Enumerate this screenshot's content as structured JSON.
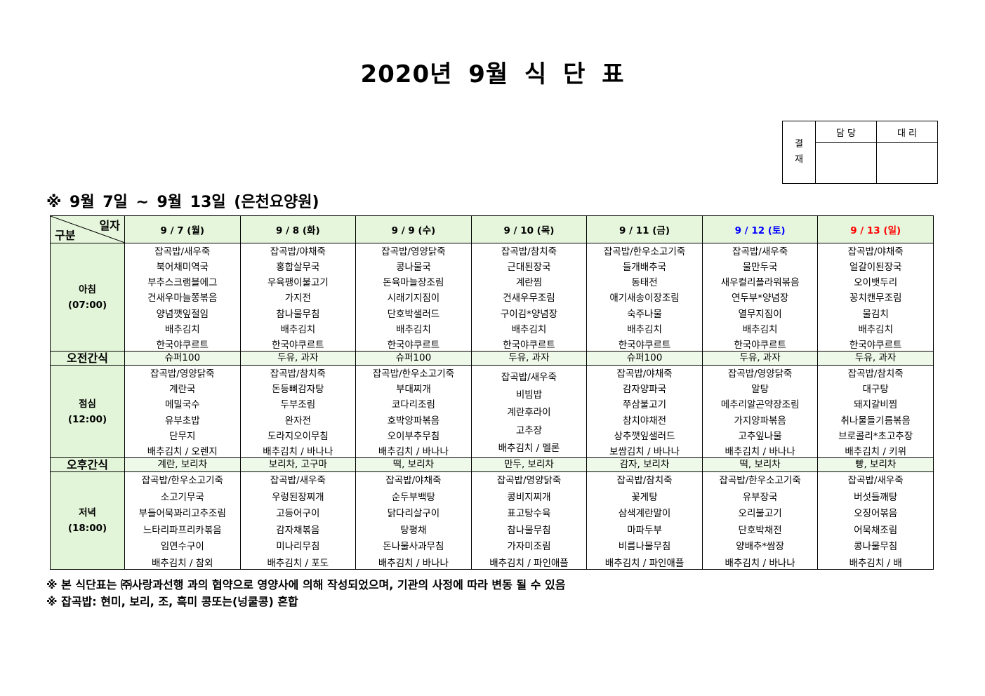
{
  "title": "2020년 9월 식 단 표",
  "approval": {
    "label": "결\n재",
    "label_top": "결",
    "label_bottom": "재",
    "columns": [
      "담 당",
      "대 리"
    ]
  },
  "subtitle": "※ 9월 7일 ~ 9월 13일 (은천요양원)",
  "table": {
    "corner_top": "일자",
    "corner_bottom": "구분",
    "days": [
      {
        "label": "9 / 7 (월)",
        "color": "#000000"
      },
      {
        "label": "9 / 8 (화)",
        "color": "#000000"
      },
      {
        "label": "9 / 9 (수)",
        "color": "#000000"
      },
      {
        "label": "9 / 10 (목)",
        "color": "#000000"
      },
      {
        "label": "9 / 11 (금)",
        "color": "#000000"
      },
      {
        "label": "9 / 12 (토)",
        "color": "#0000ff"
      },
      {
        "label": "9 / 13 (일)",
        "color": "#ff0000"
      }
    ],
    "rows": {
      "breakfast": {
        "label": "아침",
        "time": "(07:00)",
        "days": [
          [
            "잡곡밥/새우죽",
            "북어채미역국",
            "부추스크램블에그",
            "건새우마늘쫑볶음",
            "양념깻잎절임",
            "배추김치",
            "한국야쿠르트"
          ],
          [
            "잡곡밥/야채죽",
            "홍합살무국",
            "우육팽이불고기",
            "가지전",
            "참나물무침",
            "배추김치",
            "한국야쿠르트"
          ],
          [
            "잡곡밥/영양닭죽",
            "콩나물국",
            "돈육마늘장조림",
            "시래기지짐이",
            "단호박샐러드",
            "배추김치",
            "한국야쿠르트"
          ],
          [
            "잡곡밥/참치죽",
            "근대된장국",
            "계란찜",
            "건새우무조림",
            "구이김*양념장",
            "배추김치",
            "한국야쿠르트"
          ],
          [
            "잡곡밥/한우소고기죽",
            "들개배추국",
            "동태전",
            "애기새송이장조림",
            "숙주나물",
            "배추김치",
            "한국야쿠르트"
          ],
          [
            "잡곡밥/새우죽",
            "물만두국",
            "새우컬리플라워볶음",
            "연두부*양념장",
            "열무지짐이",
            "배추김치",
            "한국야쿠르트"
          ],
          [
            "잡곡밥/야채죽",
            "얼갈이된장국",
            "오이뱃두리",
            "꽁치캔무조림",
            "물김치",
            "배추김치",
            "한국야쿠르트"
          ]
        ]
      },
      "morning_snack": {
        "label": "오전간식",
        "days": [
          "슈퍼100",
          "두유,  과자",
          "슈퍼100",
          "두유,  과자",
          "슈퍼100",
          "두유,  과자",
          "두유,  과자"
        ]
      },
      "lunch": {
        "label": "점심",
        "time": "(12:00)",
        "days": [
          [
            "잡곡밥/영양닭죽",
            "계란국",
            "메밀국수",
            "유부초밥",
            "단무지",
            "배추김치 / 오렌지"
          ],
          [
            "잡곡밥/참치죽",
            "돈등뼈감자탕",
            "두부조림",
            "완자전",
            "도라지오이무침",
            "배추김치 / 바나나"
          ],
          [
            "잡곡밥/한우소고기죽",
            "부대찌개",
            "코다리조림",
            "호박양파볶음",
            "오이부추무침",
            "배추김치 / 바나나"
          ],
          [
            "잡곡밥/새우죽",
            "비빔밥",
            "계란후라이",
            "고추장",
            "배추김치 / 멜론"
          ],
          [
            "잡곡밥/야채죽",
            "감자양파국",
            "쭈삼불고기",
            "참치야채전",
            "상추깻잎샐러드",
            "보쌈김치 / 바나나"
          ],
          [
            "잡곡밥/영양닭죽",
            "알탕",
            "메추리알곤약장조림",
            "가지양파볶음",
            "고추잎나물",
            "배추김치 / 바나나"
          ],
          [
            "잡곡밥/참치죽",
            "대구탕",
            "돼지갈비찜",
            "취나물들기름볶음",
            "브로콜리*초고추장",
            "배추김치 / 키위"
          ]
        ]
      },
      "afternoon_snack": {
        "label": "오후간식",
        "days": [
          "계란, 보리차",
          "보리차, 고구마",
          "떡, 보리차",
          "만두, 보리차",
          "감자, 보리차",
          "떡, 보리차",
          "빵, 보리차"
        ]
      },
      "dinner": {
        "label": "저녁",
        "time": "(18:00)",
        "days": [
          [
            "잡곡밥/한우소고기죽",
            "소고기무국",
            "부들어묵꽈리고추조림",
            "느타리파프리카볶음",
            "임연수구이",
            "배추김치 / 참외"
          ],
          [
            "잡곡밥/새우죽",
            "우렁된장찌개",
            "고등어구이",
            "감자채볶음",
            "미나리무침",
            "배추김치 / 포도"
          ],
          [
            "잡곡밥/야채죽",
            "순두부백탕",
            "닭다리살구이",
            "탕평채",
            "돈나물사과무침",
            "배추김치 / 바나나"
          ],
          [
            "잡곡밥/영양닭죽",
            "콩비지찌개",
            "표고탕수육",
            "참나물무침",
            "가자미조림",
            "배추김치 / 파인애플"
          ],
          [
            "잡곡밥/참치죽",
            "꽃게탕",
            "삼색계란말이",
            "마파두부",
            "비름나물무침",
            "배추김치 / 파인애플"
          ],
          [
            "잡곡밥/한우소고기죽",
            "유부장국",
            "오리불고기",
            "단호박채전",
            "양배추*쌈장",
            "배추김치 / 바나나"
          ],
          [
            "잡곡밥/새우죽",
            "버섯들깨탕",
            "오징어볶음",
            "어묵채조림",
            "콩나물무침",
            "배추김치 / 배"
          ]
        ]
      }
    }
  },
  "notes": [
    "※ 본 식단표는 ㈜사랑과선행 과의 협약으로 영양사에 의해 작성되었으며, 기관의 사정에 따라 변동 될 수 있음",
    "※ 잡곡밥: 현미, 보리, 조, 흑미 콩또는(넝쿨콩) 혼합"
  ],
  "colors": {
    "header_bg": "#e6f6dc",
    "label_bg": "#e3f5d8",
    "snack_bg": "#eff9ea",
    "saturday": "#0000ff",
    "sunday": "#ff0000"
  }
}
